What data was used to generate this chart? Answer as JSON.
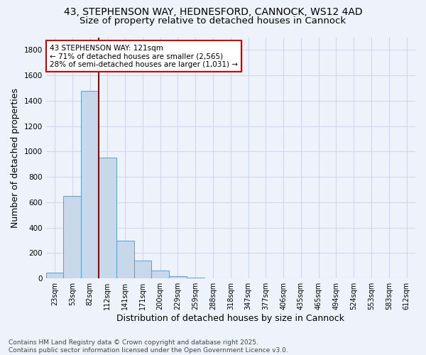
{
  "title_line1": "43, STEPHENSON WAY, HEDNESFORD, CANNOCK, WS12 4AD",
  "title_line2": "Size of property relative to detached houses in Cannock",
  "xlabel": "Distribution of detached houses by size in Cannock",
  "ylabel": "Number of detached properties",
  "categories": [
    "23sqm",
    "53sqm",
    "82sqm",
    "112sqm",
    "141sqm",
    "171sqm",
    "200sqm",
    "229sqm",
    "259sqm",
    "288sqm",
    "318sqm",
    "347sqm",
    "377sqm",
    "406sqm",
    "435sqm",
    "465sqm",
    "494sqm",
    "524sqm",
    "553sqm",
    "583sqm",
    "612sqm"
  ],
  "values": [
    45,
    650,
    1480,
    950,
    295,
    140,
    65,
    20,
    5,
    2,
    1,
    0,
    1,
    0,
    0,
    0,
    0,
    0,
    0,
    0,
    0
  ],
  "bar_color": "#c8d8eb",
  "bar_edge_color": "#5a9ec9",
  "vline_x": 2.5,
  "vline_color": "#990000",
  "annotation_text": "43 STEPHENSON WAY: 121sqm\n← 71% of detached houses are smaller (2,565)\n28% of semi-detached houses are larger (1,031) →",
  "annotation_box_color": "white",
  "annotation_box_edge_color": "#cc0000",
  "ylim": [
    0,
    1900
  ],
  "yticks": [
    0,
    200,
    400,
    600,
    800,
    1000,
    1200,
    1400,
    1600,
    1800
  ],
  "footnote": "Contains HM Land Registry data © Crown copyright and database right 2025.\nContains public sector information licensed under the Open Government Licence v3.0.",
  "bg_color": "#eef2fa",
  "grid_color": "#d0d8f0",
  "title_fontsize": 10,
  "subtitle_fontsize": 9.5,
  "tick_fontsize": 7,
  "label_fontsize": 9,
  "footnote_fontsize": 6.5,
  "annot_fontsize": 7.5
}
